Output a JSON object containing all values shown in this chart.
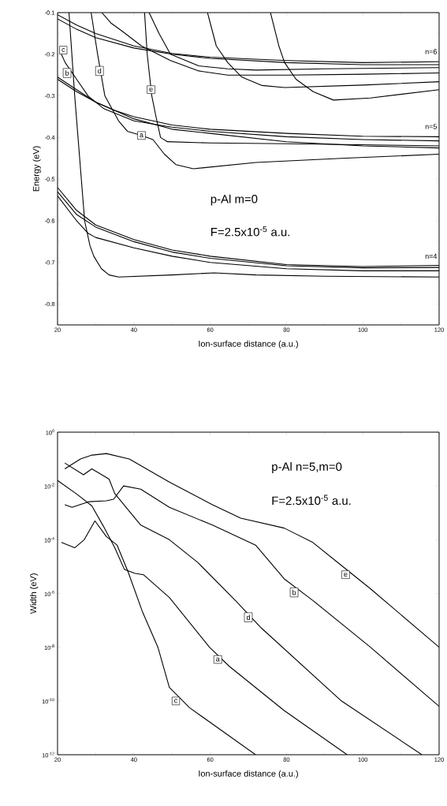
{
  "chart_data": [
    {
      "type": "line",
      "xlabel": "Ion-surface distance (a.u.)",
      "ylabel": "Energy (eV)",
      "xlim": [
        20,
        120
      ],
      "ylim": [
        -0.85,
        -0.1
      ],
      "xticks": [
        20,
        40,
        60,
        80,
        100,
        120
      ],
      "yticks": [
        -0.8,
        -0.7,
        -0.6,
        -0.5,
        -0.4,
        -0.3,
        -0.2,
        -0.1
      ],
      "series": [
        {
          "color": "#000000",
          "x": [
            20,
            25,
            30,
            40,
            50,
            60,
            80,
            100,
            120
          ],
          "values": [
            -0.105,
            -0.13,
            -0.15,
            -0.18,
            -0.198,
            -0.207,
            -0.215,
            -0.22,
            -0.218
          ]
        },
        {
          "color": "#000000",
          "x": [
            20,
            25,
            30,
            40,
            50,
            60,
            80,
            100,
            120
          ],
          "values": [
            -0.115,
            -0.14,
            -0.16,
            -0.185,
            -0.2,
            -0.21,
            -0.22,
            -0.225,
            -0.225
          ]
        },
        {
          "color": "#000000",
          "x": [
            31.6,
            34,
            37,
            42,
            49.6,
            57,
            64.6,
            80,
            100,
            120
          ],
          "values": [
            -0.1,
            -0.125,
            -0.145,
            -0.18,
            -0.215,
            -0.24,
            -0.25,
            -0.25,
            -0.248,
            -0.245
          ]
        },
        {
          "color": "#000000",
          "x": [
            44,
            46.6,
            49.6,
            57,
            64.6,
            72,
            90,
            120
          ],
          "values": [
            -0.1,
            -0.15,
            -0.2,
            -0.228,
            -0.235,
            -0.238,
            -0.235,
            -0.232
          ]
        },
        {
          "color": "#000000",
          "x": [
            59.3,
            61.6,
            64.6,
            68.3,
            73.6,
            79.5,
            100,
            120
          ],
          "values": [
            -0.1,
            -0.18,
            -0.22,
            -0.255,
            -0.275,
            -0.28,
            -0.274,
            -0.266
          ]
        },
        {
          "color": "#000000",
          "x": [
            75.8,
            78,
            79.5,
            82.5,
            87,
            92.3,
            102,
            120
          ],
          "values": [
            -0.1,
            -0.18,
            -0.22,
            -0.26,
            -0.29,
            -0.31,
            -0.305,
            -0.285
          ]
        },
        {
          "color": "#000000",
          "x": [
            23,
            24.5,
            27.1,
            28.5,
            29.5,
            31.5,
            33.5,
            36,
            50,
            61,
            72,
            90,
            120
          ],
          "values": [
            -0.1,
            -0.3,
            -0.6,
            -0.66,
            -0.685,
            -0.715,
            -0.73,
            -0.735,
            -0.73,
            -0.725,
            -0.73,
            -0.733,
            -0.735
          ]
        },
        {
          "color": "#000000",
          "x": [
            28.8,
            30.5,
            32.4,
            36,
            38.3,
            42,
            45,
            48,
            51,
            55.6,
            72,
            94.5,
            120
          ],
          "values": [
            -0.1,
            -0.2,
            -0.3,
            -0.36,
            -0.385,
            -0.395,
            -0.405,
            -0.44,
            -0.465,
            -0.475,
            -0.46,
            -0.45,
            -0.44
          ]
        },
        {
          "color": "#000000",
          "x": [
            42.8,
            43.5,
            44.7,
            45.8,
            47,
            48.8,
            60,
            80,
            120
          ],
          "values": [
            -0.1,
            -0.2,
            -0.3,
            -0.35,
            -0.4,
            -0.41,
            -0.413,
            -0.415,
            -0.42
          ]
        },
        {
          "color": "#000000",
          "x": [
            20,
            25,
            30,
            35,
            40,
            50,
            60,
            80,
            100,
            120
          ],
          "values": [
            -0.255,
            -0.285,
            -0.315,
            -0.335,
            -0.35,
            -0.37,
            -0.38,
            -0.39,
            -0.397,
            -0.398
          ]
        },
        {
          "color": "#000000",
          "x": [
            21,
            22,
            25,
            28,
            32,
            40,
            50,
            60,
            80,
            100,
            120
          ],
          "values": [
            -0.2,
            -0.22,
            -0.26,
            -0.3,
            -0.33,
            -0.36,
            -0.375,
            -0.385,
            -0.398,
            -0.405,
            -0.408
          ]
        },
        {
          "color": "#000000",
          "x": [
            20,
            25,
            30,
            40,
            50,
            60,
            80,
            100,
            120
          ],
          "values": [
            -0.26,
            -0.29,
            -0.315,
            -0.355,
            -0.38,
            -0.39,
            -0.41,
            -0.42,
            -0.425
          ]
        },
        {
          "color": "#000000",
          "x": [
            20,
            25,
            30,
            40,
            50,
            60,
            80,
            100,
            120
          ],
          "values": [
            -0.52,
            -0.575,
            -0.61,
            -0.645,
            -0.67,
            -0.685,
            -0.705,
            -0.71,
            -0.707
          ]
        },
        {
          "color": "#000000",
          "x": [
            20,
            25,
            30,
            40,
            50,
            60,
            80,
            100,
            120
          ],
          "values": [
            -0.53,
            -0.585,
            -0.615,
            -0.65,
            -0.675,
            -0.69,
            -0.708,
            -0.713,
            -0.712
          ]
        },
        {
          "color": "#000000",
          "x": [
            20,
            25,
            28,
            30,
            40,
            50,
            60,
            80,
            100,
            120
          ],
          "values": [
            -0.54,
            -0.6,
            -0.63,
            -0.64,
            -0.665,
            -0.685,
            -0.7,
            -0.715,
            -0.72,
            -0.72
          ]
        }
      ],
      "annotations": [
        "p-Al m=0",
        "F=2.5x10$^{-5}$ a.u.",
        {
          "text": "c",
          "x": 21.5,
          "y": -0.19
        },
        {
          "text": "b",
          "x": 22.5,
          "y": -0.245
        },
        {
          "text": "d",
          "x": 31,
          "y": -0.24
        },
        {
          "text": "e",
          "x": 44.5,
          "y": -0.285
        },
        {
          "text": "a",
          "x": 42,
          "y": -0.395
        },
        "n=6",
        "n=5",
        "n=4"
      ]
    },
    {
      "type": "line",
      "log": true,
      "xlabel": "Ion-surface distance (a.u.)",
      "ylabel": "Width (eV)",
      "xlim": [
        20,
        120
      ],
      "ylim": [
        1e-12,
        1
      ],
      "xticks": [
        20,
        40,
        60,
        80,
        100,
        120
      ],
      "yticks": [
        {
          "value": 1e-12,
          "label": "10$^{-12}$"
        },
        {
          "value": 1e-10,
          "label": "10$^{-10}$"
        },
        {
          "value": 1e-08,
          "label": "10$^{-8}$"
        },
        {
          "value": 1e-06,
          "label": "10$^{-6}$"
        },
        {
          "value": 0.0001,
          "label": "10$^{-4}$"
        },
        {
          "value": 0.01,
          "label": "10$^{-2}$"
        },
        {
          "value": 1,
          "label": "10$^{0}$"
        }
      ],
      "series": [
        {
          "color": "#000000",
          "x": [
            21.9,
            26,
            29,
            32.8,
            38.8,
            49.3,
            60.6,
            68,
            79.4,
            86.9,
            94.4,
            102,
            120
          ],
          "values": [
            0.043,
            0.1,
            0.14,
            0.16,
            0.1,
            0.014,
            0.002,
            0.00063,
            0.00027,
            7.9e-05,
            1.1e-05,
            1.5e-06,
            1e-08
          ]
        },
        {
          "color": "#000000",
          "x": [
            21.9,
            26.8,
            29,
            33.5,
            35,
            41.8,
            49.3,
            56.8,
            66.6,
            73.4,
            94.4,
            115.5
          ],
          "values": [
            0.071,
            0.026,
            0.043,
            0.018,
            0.0052,
            0.00035,
            0.0001,
            1.4e-05,
            5.5e-07,
            5.2e-08,
            1e-10,
            1e-12
          ]
        },
        {
          "color": "#000000",
          "x": [
            21.9,
            23.8,
            28.3,
            32.8,
            34.7,
            37.3,
            41.8,
            49.3,
            60.6,
            71.9,
            79.4,
            86.9,
            102,
            120
          ],
          "values": [
            0.002,
            0.0016,
            0.0026,
            0.0028,
            0.0032,
            0.01,
            0.0076,
            0.0016,
            0.00035,
            6.3e-05,
            3.5e-06,
            5.5e-07,
            1e-08,
            6.3e-11
          ]
        },
        {
          "color": "#000000",
          "x": [
            20,
            25,
            29,
            32,
            35,
            37.5,
            40.3,
            42.5,
            49.3,
            59.8,
            65.1,
            79.4,
            95.9
          ],
          "values": [
            0.016,
            0.005,
            0.0018,
            0.00032,
            5e-05,
            7.9e-06,
            5.6e-06,
            5e-06,
            7.1e-07,
            1e-08,
            1.9e-09,
            4.4e-11,
            1e-12
          ]
        },
        {
          "color": "#000000",
          "x": [
            21,
            24.5,
            27,
            29.8,
            32.8,
            35.6,
            38.5,
            42.3,
            46.3,
            49.3,
            54.6,
            71.9
          ],
          "values": [
            7.9e-05,
            5e-05,
            0.0001,
            0.0005,
            0.00013,
            6.3e-05,
            6.3e-06,
            2e-07,
            1e-08,
            3.2e-10,
            5.6e-11,
            1e-12
          ]
        }
      ],
      "annotations": [
        "p-Al n=5,m=0",
        "F=2.5x10$^{-5}$ a.u.",
        {
          "text": "e",
          "x": 95.5,
          "y": 5e-06
        },
        {
          "text": "b",
          "x": 82,
          "y": 1.1e-06
        },
        {
          "text": "d",
          "x": 70,
          "y": 1.3e-07
        },
        {
          "text": "a",
          "x": 62,
          "y": 3.5e-09
        },
        {
          "text": "c",
          "x": 51,
          "y": 1e-10
        }
      ]
    }
  ]
}
